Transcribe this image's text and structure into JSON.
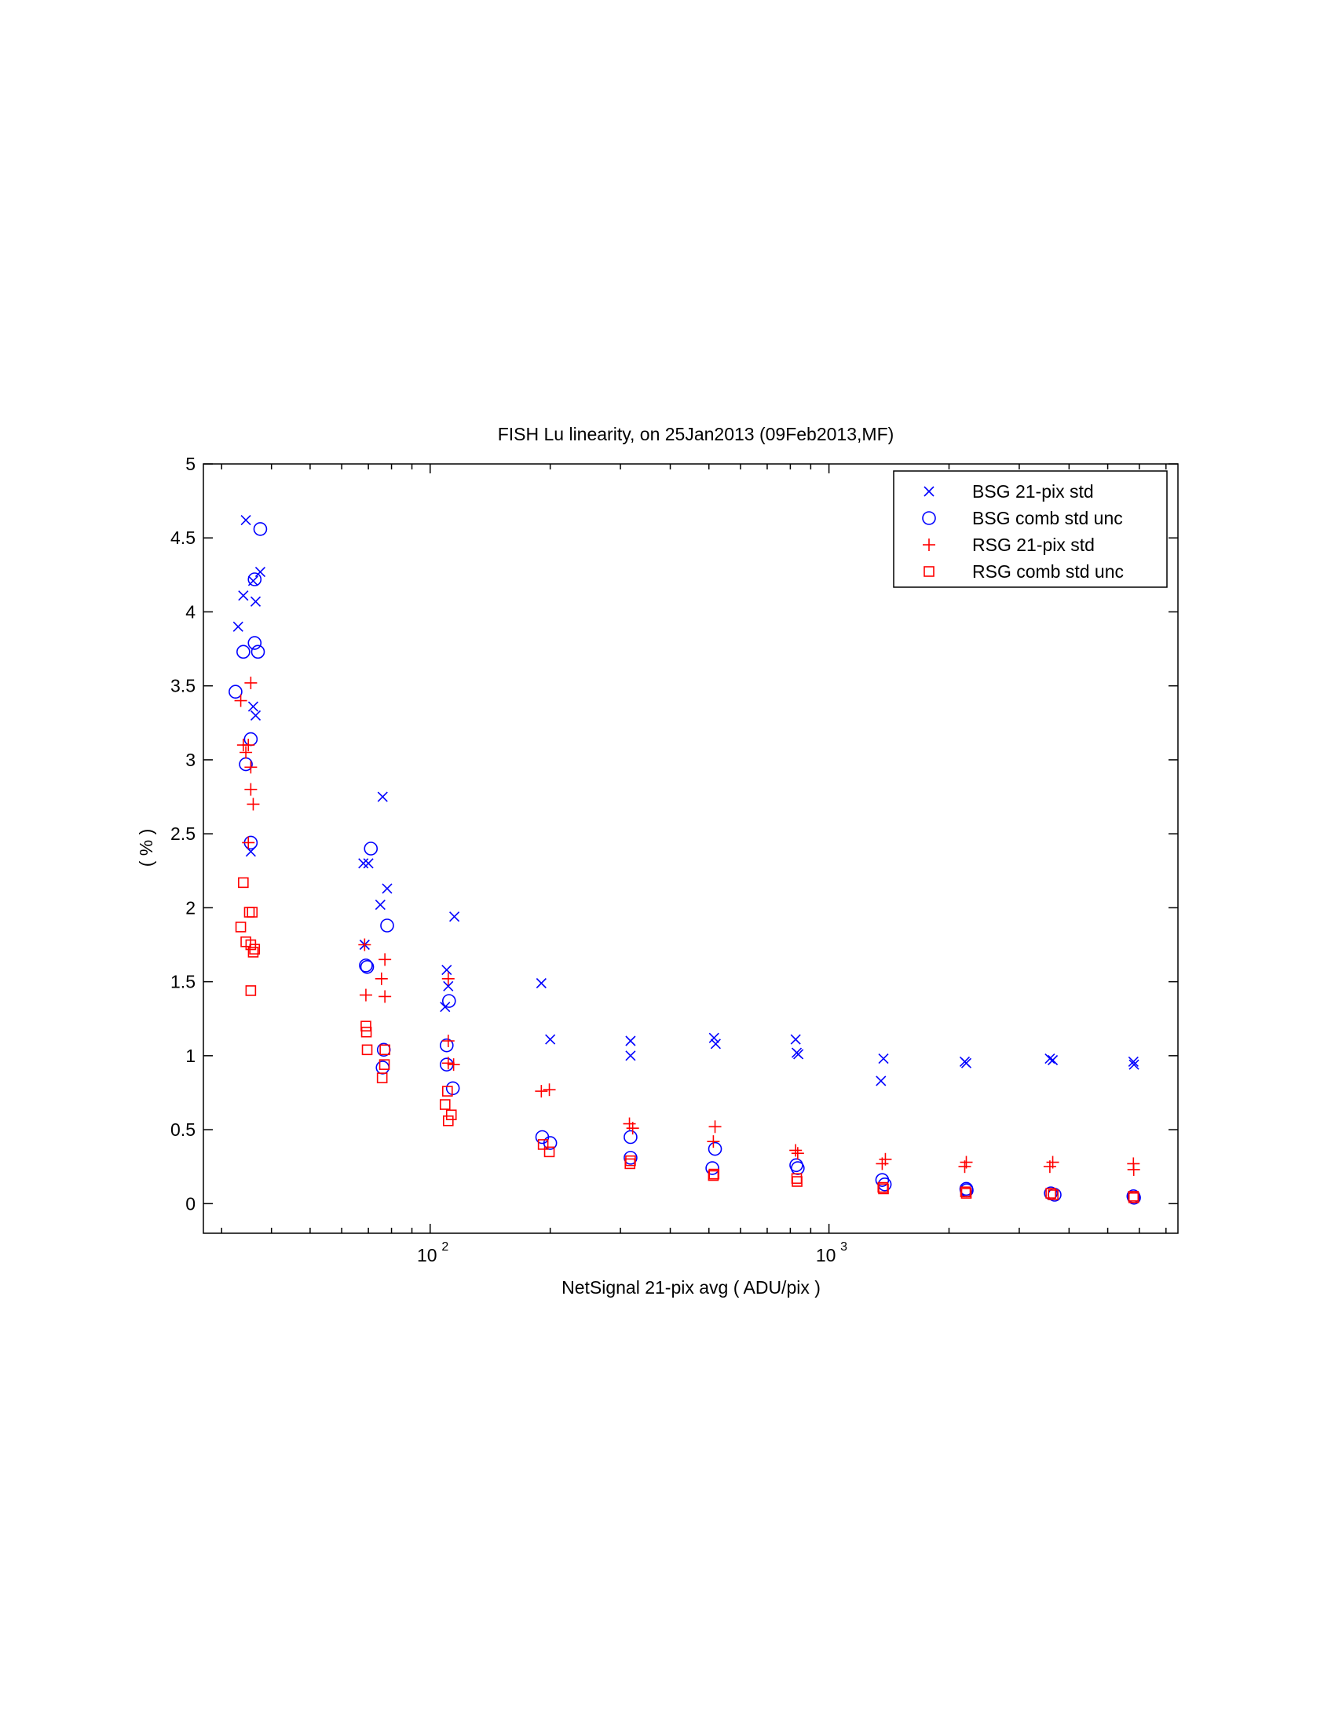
{
  "chart_data": {
    "type": "scatter",
    "title": "FISH Lu linearity, on 25Jan2013  (09Feb2013,MF)",
    "xlabel": "NetSignal  21-pix avg  ( ADU/pix )",
    "ylabel": "( % )",
    "xscale": "log",
    "xlim": [
      27,
      7500
    ],
    "ylim": [
      -0.2,
      5
    ],
    "y_ticks": [
      0,
      0.5,
      1,
      1.5,
      2,
      2.5,
      3,
      3.5,
      4,
      4.5,
      5
    ],
    "y_tick_labels": [
      "0",
      "0.5",
      "1",
      "1.5",
      "2",
      "2.5",
      "3",
      "3.5",
      "4",
      "4.5",
      "5"
    ],
    "x_major_ticks": [
      100,
      1000
    ],
    "x_tick_labels": [
      {
        "base": "10",
        "exp": "2"
      },
      {
        "base": "10",
        "exp": "3"
      }
    ],
    "legend_position": "top-right",
    "grid": false,
    "series": [
      {
        "name": "BSG 21-pix std",
        "marker": "x",
        "color": "#0000ff",
        "points": [
          [
            33,
            3.9
          ],
          [
            34.5,
            4.62
          ],
          [
            34,
            4.11
          ],
          [
            36,
            4.21
          ],
          [
            36.5,
            4.07
          ],
          [
            37.5,
            4.27
          ],
          [
            36,
            3.36
          ],
          [
            36.5,
            3.3
          ],
          [
            35.5,
            2.38
          ],
          [
            68,
            2.3
          ],
          [
            70,
            2.3
          ],
          [
            76,
            2.75
          ],
          [
            78,
            2.13
          ],
          [
            75,
            2.02
          ],
          [
            68.5,
            1.75
          ],
          [
            115,
            1.94
          ],
          [
            110,
            1.58
          ],
          [
            111,
            1.47
          ],
          [
            109,
            1.33
          ],
          [
            190,
            1.49
          ],
          [
            200,
            1.11
          ],
          [
            318,
            1.1
          ],
          [
            318,
            1.0
          ],
          [
            515,
            1.12
          ],
          [
            520,
            1.08
          ],
          [
            825,
            1.11
          ],
          [
            830,
            1.02
          ],
          [
            838,
            1.01
          ],
          [
            1370,
            0.98
          ],
          [
            1350,
            0.83
          ],
          [
            2190,
            0.96
          ],
          [
            2210,
            0.95
          ],
          [
            3580,
            0.98
          ],
          [
            3640,
            0.97
          ],
          [
            5800,
            0.96
          ],
          [
            5820,
            0.94
          ]
        ]
      },
      {
        "name": "BSG comb std unc",
        "marker": "o",
        "color": "#0000ff",
        "points": [
          [
            37.5,
            4.56
          ],
          [
            36.3,
            4.22
          ],
          [
            32.5,
            3.46
          ],
          [
            34,
            3.73
          ],
          [
            36.3,
            3.79
          ],
          [
            37,
            3.73
          ],
          [
            35.5,
            3.14
          ],
          [
            34.5,
            2.97
          ],
          [
            35.5,
            2.44
          ],
          [
            71,
            2.4
          ],
          [
            78,
            1.88
          ],
          [
            69,
            1.61
          ],
          [
            69.5,
            1.6
          ],
          [
            76.5,
            1.04
          ],
          [
            76,
            0.92
          ],
          [
            111.5,
            1.37
          ],
          [
            110,
            1.07
          ],
          [
            110,
            0.94
          ],
          [
            114,
            0.78
          ],
          [
            191,
            0.45
          ],
          [
            200,
            0.41
          ],
          [
            318,
            0.45
          ],
          [
            318,
            0.31
          ],
          [
            518,
            0.37
          ],
          [
            510,
            0.24
          ],
          [
            828,
            0.26
          ],
          [
            835,
            0.24
          ],
          [
            1360,
            0.16
          ],
          [
            1380,
            0.13
          ],
          [
            2210,
            0.1
          ],
          [
            2215,
            0.09
          ],
          [
            3600,
            0.07
          ],
          [
            3680,
            0.06
          ],
          [
            5800,
            0.05
          ],
          [
            5820,
            0.04
          ]
        ]
      },
      {
        "name": "RSG 21-pix std",
        "marker": "+",
        "color": "#ff0000",
        "points": [
          [
            35.5,
            3.52
          ],
          [
            33.5,
            3.4
          ],
          [
            34,
            3.1
          ],
          [
            35,
            3.1
          ],
          [
            34.5,
            3.05
          ],
          [
            35.5,
            2.95
          ],
          [
            35.5,
            2.8
          ],
          [
            36,
            2.7
          ],
          [
            35,
            2.44
          ],
          [
            68.5,
            1.75
          ],
          [
            77,
            1.65
          ],
          [
            75.5,
            1.52
          ],
          [
            69,
            1.41
          ],
          [
            77,
            1.4
          ],
          [
            111,
            1.52
          ],
          [
            111,
            1.1
          ],
          [
            111,
            0.95
          ],
          [
            114.5,
            0.94
          ],
          [
            190,
            0.76
          ],
          [
            199,
            0.77
          ],
          [
            316,
            0.54
          ],
          [
            322,
            0.51
          ],
          [
            518,
            0.52
          ],
          [
            513,
            0.42
          ],
          [
            825,
            0.36
          ],
          [
            835,
            0.34
          ],
          [
            1385,
            0.3
          ],
          [
            1360,
            0.27
          ],
          [
            2210,
            0.28
          ],
          [
            2190,
            0.25
          ],
          [
            3640,
            0.28
          ],
          [
            3580,
            0.25
          ],
          [
            5800,
            0.27
          ],
          [
            5810,
            0.23
          ]
        ]
      },
      {
        "name": "RSG comb std unc",
        "marker": "s",
        "color": "#ff0000",
        "points": [
          [
            34,
            2.17
          ],
          [
            35.2,
            1.97
          ],
          [
            35.8,
            1.97
          ],
          [
            33.5,
            1.87
          ],
          [
            34.5,
            1.77
          ],
          [
            35.5,
            1.75
          ],
          [
            36,
            1.7
          ],
          [
            36.3,
            1.72
          ],
          [
            35.5,
            1.44
          ],
          [
            69,
            1.2
          ],
          [
            69.2,
            1.16
          ],
          [
            69.5,
            1.04
          ],
          [
            77,
            1.04
          ],
          [
            76.8,
            0.94
          ],
          [
            75.8,
            0.85
          ],
          [
            110.5,
            0.76
          ],
          [
            109,
            0.67
          ],
          [
            113,
            0.6
          ],
          [
            111,
            0.56
          ],
          [
            192,
            0.4
          ],
          [
            199,
            0.35
          ],
          [
            318,
            0.29
          ],
          [
            317,
            0.27
          ],
          [
            515,
            0.2
          ],
          [
            513,
            0.19
          ],
          [
            830,
            0.17
          ],
          [
            832,
            0.15
          ],
          [
            1365,
            0.11
          ],
          [
            1370,
            0.1
          ],
          [
            2200,
            0.08
          ],
          [
            2210,
            0.07
          ],
          [
            3600,
            0.07
          ],
          [
            3650,
            0.06
          ],
          [
            5800,
            0.05
          ],
          [
            5810,
            0.04
          ]
        ]
      }
    ]
  }
}
